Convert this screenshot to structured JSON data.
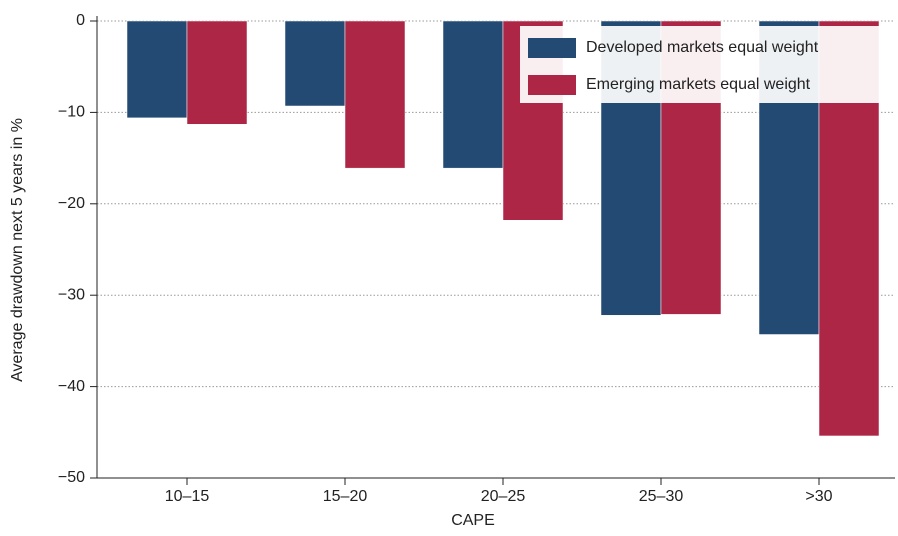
{
  "chart_data": {
    "type": "bar",
    "x_label": "CAPE",
    "y_label": "Average drawdown next 5 years in %",
    "categories": [
      "10–15",
      "15–20",
      "20–25",
      "25–30",
      ">30"
    ],
    "series": [
      {
        "name": "Developed markets equal weight",
        "color": "#234a73",
        "values": [
          -10.6,
          -9.3,
          -16.1,
          -32.2,
          -34.3
        ]
      },
      {
        "name": "Emerging markets equal weight",
        "color": "#ae2645",
        "values": [
          -11.3,
          -16.1,
          -21.8,
          -32.1,
          -45.4
        ]
      }
    ],
    "ylim": [
      -50,
      0
    ],
    "yticks": [
      {
        "value": -50,
        "label": "−50"
      },
      {
        "value": -40,
        "label": "−40"
      },
      {
        "value": -30,
        "label": "−30"
      },
      {
        "value": -20,
        "label": "−20"
      },
      {
        "value": -10,
        "label": "−10"
      },
      0
    ],
    "grid": true,
    "legend": "upper-right"
  }
}
